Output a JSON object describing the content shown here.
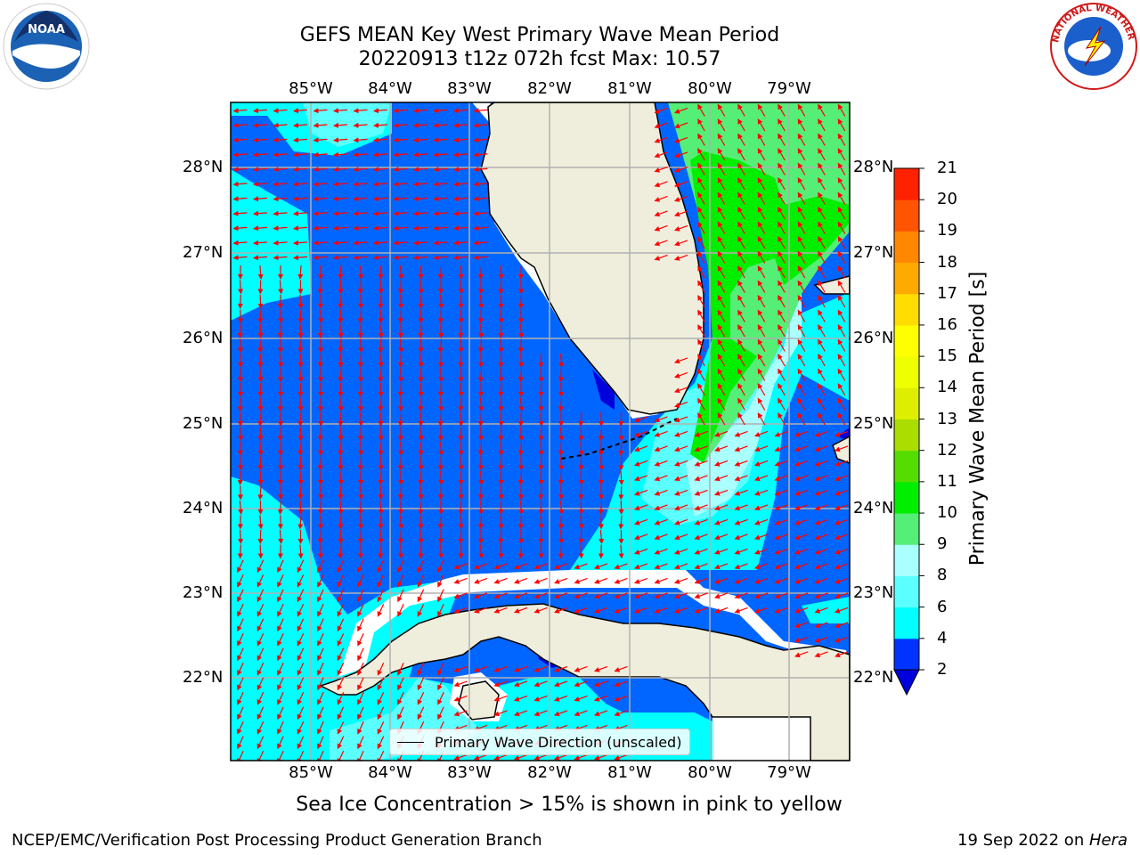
{
  "title_line1": "GEFS MEAN Key West Primary Wave Mean Period",
  "title_line2": "20220913 t12z 072h fcst   Max: 10.57",
  "lon_labels": [
    "85°W",
    "84°W",
    "83°W",
    "82°W",
    "81°W",
    "80°W",
    "79°W"
  ],
  "lat_labels": [
    "28°N",
    "27°N",
    "26°N",
    "25°N",
    "24°N",
    "23°N",
    "22°N"
  ],
  "legend_label": "Primary Wave Direction (unscaled)",
  "colorbar": {
    "label": "Primary Wave Mean Period [s]",
    "ticks": [
      "2",
      "4",
      "6",
      "8",
      "9",
      "10",
      "11",
      "12",
      "13",
      "14",
      "15",
      "16",
      "17",
      "18",
      "19",
      "20",
      "21"
    ],
    "colors": [
      "#0033ff",
      "#00ffff",
      "#5cffff",
      "#aaffff",
      "#55ee77",
      "#00ee00",
      "#55dd00",
      "#aadd00",
      "#ddee00",
      "#eeff00",
      "#ffff00",
      "#ffdd00",
      "#ffaa00",
      "#ff8800",
      "#ff5500",
      "#ff2200"
    ],
    "extend_color": "#0000dd"
  },
  "subtitle": "Sea Ice Concentration > 15% is shown in pink to yellow",
  "footer_left": "NCEP/EMC/Verification Post Processing Product Generation Branch",
  "footer_date": "19 Sep 2022 on ",
  "footer_machine": "Hera",
  "logos": {
    "left": {
      "icon": "noaa-logo",
      "text": "NOAA"
    },
    "right": {
      "icon": "nws-logo",
      "text": "NATIONAL WEATHER SERVICE"
    }
  },
  "colors": {
    "land": "#efeedd",
    "ocean_dark": "#0066ff",
    "ocean_mid": "#00ffff",
    "arrow": "#ff0000",
    "grid": "#b0b0b0"
  }
}
